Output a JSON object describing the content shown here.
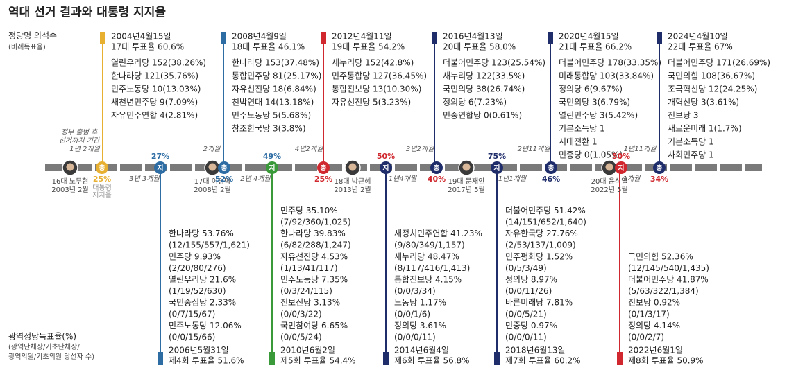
{
  "title": "역대 선거 결과와 대통령 지지율",
  "left_labels": {
    "top": [
      "정당명 의석수",
      "(비례득표율)"
    ],
    "bottom": [
      "광역정당득표율(%)",
      "(광역단체장/기초단체장/",
      "광역의원/기초의원 당선자 수)"
    ]
  },
  "general_elections": [
    {
      "color": "#e8b030",
      "date": "2004년4월15일",
      "turnout": "17대 투표율 60.6%",
      "results": [
        "열린우리당 152(38.26%)",
        "한나라당 121(35.76%)",
        "민주노동당 10(13.03%)",
        "새천년민주당 9(7.09%)",
        "자유민주연합 4(2.81%)"
      ]
    },
    {
      "color": "#2e6da4",
      "date": "2008년4월9일",
      "turnout": "18대 투표율 46.1%",
      "results": [
        "한나라당 153(37.48%)",
        "통합민주당 81(25.17%)",
        "자유선진당 18(6.84%)",
        "친박연대 14(13.18%)",
        "민주노동당 5(5.68%)",
        "창조한국당 3(3.8%)"
      ]
    },
    {
      "color": "#d0282e",
      "date": "2012년4월11일",
      "turnout": "19대 투표율 54.2%",
      "results": [
        "새누리당 152(42.8%)",
        "민주통합당 127(36.45%)",
        "통합진보당 13(10.30%)",
        "자유선진당 5(3.23%)"
      ]
    },
    {
      "color": "#1f2d6b",
      "date": "2016년4월13일",
      "turnout": "20대 투표율 58.0%",
      "results": [
        "더불어민주당 123(25.54%)",
        "새누리당 122(33.5%)",
        "국민의당 38(26.74%)",
        "정의당 6(7.23%)",
        "민중연합당 0(0.61%)"
      ]
    },
    {
      "color": "#1f2d6b",
      "date": "2020년4월15일",
      "turnout": "21대 투표율 66.2%",
      "results": [
        "더불어민주당 178(33.35%)",
        "미래통합당 103(33.84%)",
        "정의당 6(9.67%)",
        "국민의당 3(6.79%)",
        "열린민주당 3(5.42%)",
        "기본소득당 1",
        "시대전환 1",
        "민중당 0(1.05%)"
      ]
    },
    {
      "color": "#1f2d6b",
      "date": "2024년4월10일",
      "turnout": "22대 투표율 67%",
      "results": [
        "더불어민주당 171(26.69%)",
        "국민의힘 108(36.67%)",
        "조국혁신당 12(24.25%)",
        "개혁신당 3(3.61%)",
        "진보당 3",
        "새로운미래 1(1.7%)",
        "기본소득당 1",
        "사회민주당 1"
      ]
    }
  ],
  "local_elections": [
    {
      "color": "#2e6da4",
      "date": "2006년5월31일",
      "turnout": "제4회 투표율 51.6%",
      "results": [
        "한나라당  53.76%",
        "(12/155/557/1,621)",
        "민주당  9.93%",
        "(2/20/80/276)",
        "열린우리당  21.6%",
        "(1/19/52/630)",
        "국민중심당  2.33%",
        "(0/7/15/67)",
        "민주노동당  12.06%",
        "(0/0/15/66)"
      ]
    },
    {
      "color": "#3a9a3a",
      "date": "2010년6월2일",
      "turnout": "제5회 투표율 54.4%",
      "results": [
        "민주당  35.10%",
        "(7/92/360/1,025)",
        "한나라당  39.83%",
        "(6/82/288/1,247)",
        "자유선진당  4.53%",
        "(1/13/41/117)",
        "민주노동당  7.35%",
        "(0/3/24/115)",
        "진보신당  3.13%",
        "(0/0/3/22)",
        "국민참여당  6.65%",
        "(0/0/5/24)"
      ]
    },
    {
      "color": "#1f2d6b",
      "date": "2014년6월4일",
      "turnout": "제6회 투표율 56.8%",
      "results": [
        "새정치민주연합 41.23%",
        "(9/80/349/1,157)",
        "새누리당 48.47%",
        "(8/117/416/1,413)",
        "통합진보당 4.15%",
        "(0/0/3/34)",
        "노동당 1.17%",
        "(0/0/1/6)",
        "정의당 3.61%",
        "(0/0/0/11)"
      ]
    },
    {
      "color": "#1f2d6b",
      "date": "2018년6월13일",
      "turnout": "제7회 투표율 60.2%",
      "results": [
        "더불어민주당 51.42%",
        "(14/151/652/1,640)",
        "자유한국당 27.76%",
        "(2/53/137/1,009)",
        "민주평화당 1.52%",
        "(0/5/3/49)",
        "정의당 8.97%",
        "(0/0/11/26)",
        "바른미래당 7.81%",
        "(0/0/5/21)",
        "민중당 0.97%",
        "(0/0/0/11)"
      ]
    },
    {
      "color": "#d0282e",
      "date": "2022년6월1일",
      "turnout": "제8회 투표율 50.9%",
      "results": [
        "국민의힘 52.36%",
        "(12/145/540/1,435)",
        "더불어민주당 41.87%",
        "(5/63/322/1,384)",
        "진보당 0.92%",
        "(0/1/3/17)",
        "정의당 4.14%",
        "(0/0/2/7)"
      ]
    }
  ],
  "markers": [
    {
      "symbol": "총",
      "percent": "25%",
      "color": "#e8b030",
      "percent_color": "#e8b030"
    },
    {
      "symbol": "지",
      "percent": "27%",
      "color": "#2e6da4",
      "percent_color": "#2e6da4"
    },
    {
      "symbol": "총",
      "percent": "52%",
      "color": "#2e6da4",
      "percent_color": "#2e6da4"
    },
    {
      "symbol": "지",
      "percent": "49%",
      "color": "#3a9a3a",
      "percent_color": "#2e6da4"
    },
    {
      "symbol": "총",
      "percent": "25%",
      "color": "#d0282e",
      "percent_color": "#d0282e"
    },
    {
      "symbol": "지",
      "percent": "50%",
      "color": "#1f2d6b",
      "percent_color": "#d0282e"
    },
    {
      "symbol": "총",
      "percent": "40%",
      "color": "#1f2d6b",
      "percent_color": "#d0282e"
    },
    {
      "symbol": "지",
      "percent": "75%",
      "color": "#1f2d6b",
      "percent_color": "#1f2d6b"
    },
    {
      "symbol": "총",
      "percent": "46%",
      "color": "#1f2d6b",
      "percent_color": "#1f2d6b"
    },
    {
      "symbol": "지",
      "percent": "50%",
      "color": "#d0282e",
      "percent_color": "#d0282e"
    },
    {
      "symbol": "총",
      "percent": "34%",
      "color": "#1f2d6b",
      "percent_color": "#d0282e"
    }
  ],
  "approval_note": [
    "대통령",
    "지지율"
  ],
  "period_note": [
    "정부 출범 후",
    "선거까지 기간"
  ],
  "presidents": [
    {
      "name": "16대 노무현",
      "date": "2003년 2월"
    },
    {
      "name": "17대 이명박",
      "date": "2008년 2월"
    },
    {
      "name": "18대 박근혜",
      "date": "2013년 2월"
    },
    {
      "name": "19대 문재인",
      "date": "2017년 5월"
    },
    {
      "name": "20대 윤석열",
      "date": "2022년 5월"
    }
  ],
  "intervals": [
    "1년 2개월",
    "3년 3개월",
    "2개월",
    "2년 4개월",
    "4년2개월",
    "1년4개월",
    "3년2개월",
    "1년1개월",
    "2년11개월",
    "1년11개월",
    "1개월"
  ]
}
